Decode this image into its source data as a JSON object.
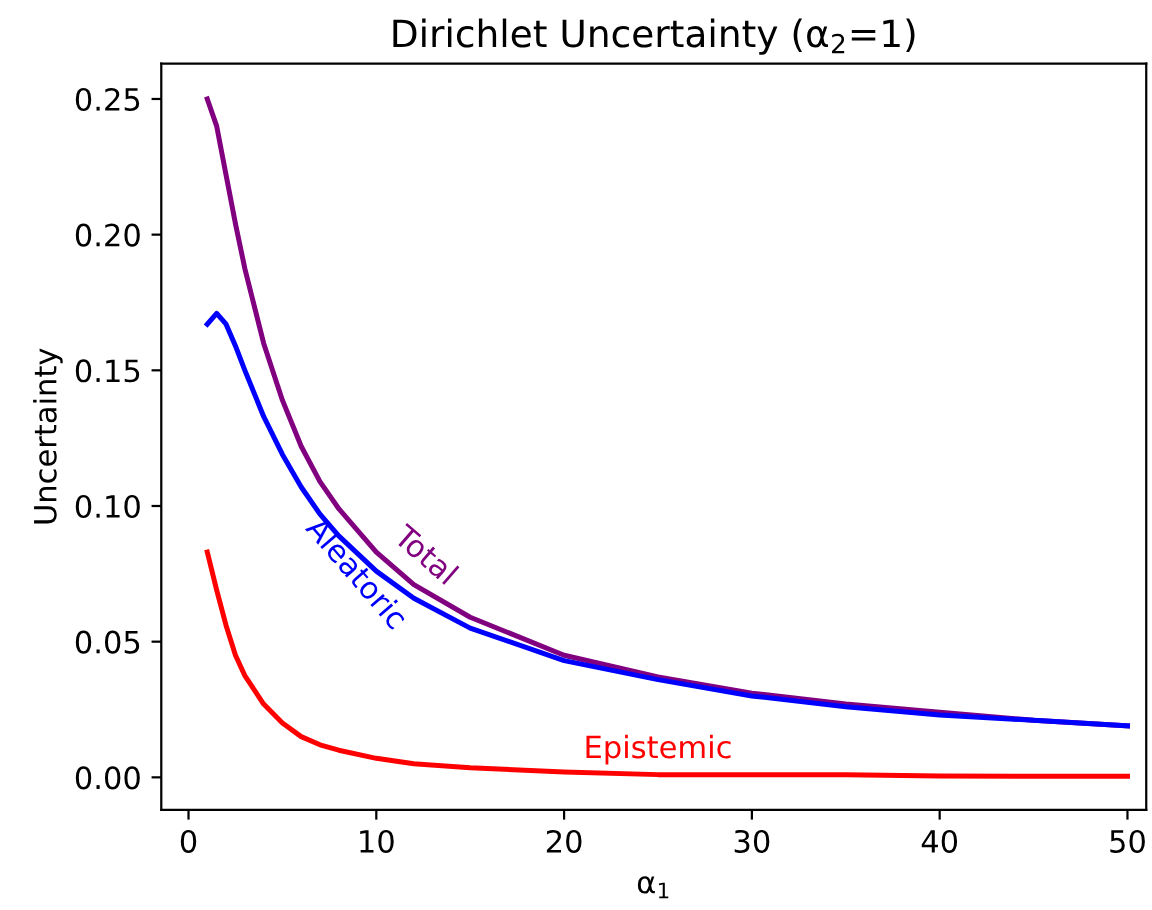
{
  "chart_data": {
    "type": "line",
    "title": "Dirichlet Uncertainty (α$_{2}$=1)",
    "xlabel": "α$_{1}$",
    "ylabel": "Uncertainty",
    "x": [
      1,
      1.5,
      2,
      2.5,
      3,
      4,
      5,
      6,
      7,
      8,
      10,
      12,
      15,
      20,
      25,
      30,
      35,
      40,
      45,
      50
    ],
    "series": [
      {
        "name": "Total",
        "color": "#800080",
        "values": [
          0.25,
          0.24,
          0.222,
          0.204,
          0.1875,
          0.16,
          0.139,
          0.122,
          0.109,
          0.099,
          0.083,
          0.071,
          0.059,
          0.045,
          0.037,
          0.031,
          0.027,
          0.024,
          0.021,
          0.019
        ]
      },
      {
        "name": "Aleatoric",
        "color": "#0000ff",
        "values": [
          0.167,
          0.171,
          0.167,
          0.159,
          0.15,
          0.133,
          0.119,
          0.107,
          0.097,
          0.089,
          0.076,
          0.066,
          0.055,
          0.043,
          0.036,
          0.03,
          0.026,
          0.023,
          0.021,
          0.019
        ]
      },
      {
        "name": "Epistemic",
        "color": "#ff0000",
        "values": [
          0.083,
          0.069,
          0.056,
          0.045,
          0.0375,
          0.027,
          0.02,
          0.015,
          0.012,
          0.01,
          0.007,
          0.005,
          0.0035,
          0.002,
          0.001,
          0.001,
          0.001,
          0.0005,
          0.0004,
          0.0004
        ]
      }
    ],
    "xlim": [
      -1.45,
      51
    ],
    "ylim": [
      -0.012,
      0.263
    ],
    "xticks": [
      0,
      10,
      20,
      30,
      40,
      50
    ],
    "yticks": [
      {
        "value": 0,
        "label": "0.00"
      },
      {
        "value": 0.05,
        "label": "0.05"
      },
      {
        "value": 0.1,
        "label": "0.10"
      },
      {
        "value": 0.15,
        "label": "0.15"
      },
      {
        "value": 0.2,
        "label": "0.20"
      },
      {
        "value": 0.25,
        "label": "0.25"
      }
    ],
    "grid": false,
    "legend": false
  }
}
